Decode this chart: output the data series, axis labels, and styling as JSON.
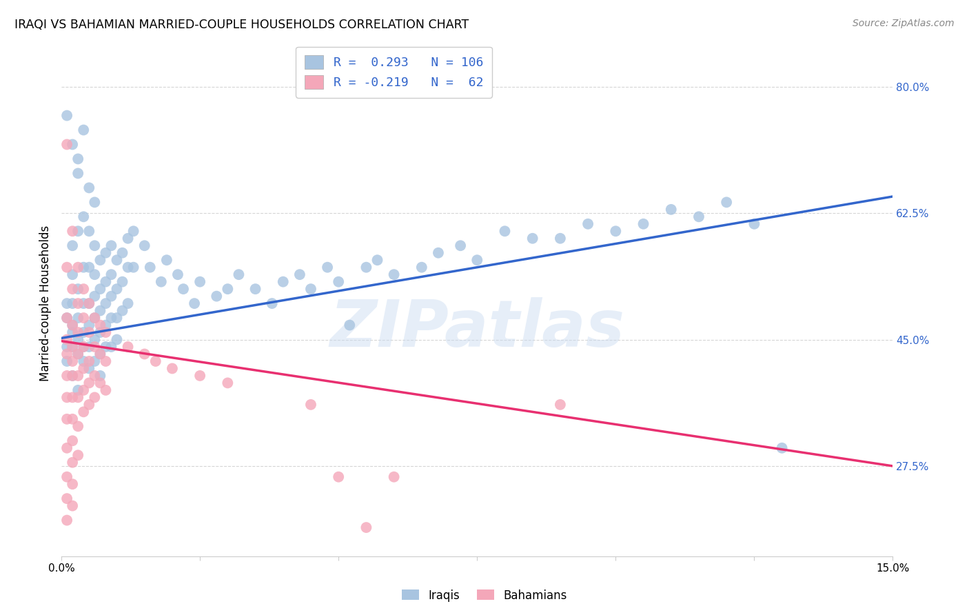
{
  "title": "IRAQI VS BAHAMIAN MARRIED-COUPLE HOUSEHOLDS CORRELATION CHART",
  "source": "Source: ZipAtlas.com",
  "ylabel": "Married-couple Households",
  "watermark": "ZIPatlas",
  "xmin": 0.0,
  "xmax": 0.15,
  "ymin": 0.15,
  "ymax": 0.85,
  "yticks": [
    0.275,
    0.45,
    0.625,
    0.8
  ],
  "ytick_labels": [
    "27.5%",
    "45.0%",
    "62.5%",
    "80.0%"
  ],
  "xticks": [
    0.0,
    0.025,
    0.05,
    0.075,
    0.1,
    0.125,
    0.15
  ],
  "xtick_labels": [
    "0.0%",
    "",
    "",
    "",
    "",
    "",
    "15.0%"
  ],
  "blue_R": 0.293,
  "blue_N": 106,
  "pink_R": -0.219,
  "pink_N": 62,
  "blue_color": "#a8c4e0",
  "pink_color": "#f4a7b9",
  "blue_line_color": "#3366cc",
  "pink_line_color": "#e83070",
  "background_color": "#ffffff",
  "grid_color": "#cccccc",
  "legend_R_color": "#3366cc",
  "blue_line_x0": 0.0,
  "blue_line_y0": 0.452,
  "blue_line_x1": 0.15,
  "blue_line_y1": 0.648,
  "pink_line_x0": 0.0,
  "pink_line_y0": 0.448,
  "pink_line_x1": 0.15,
  "pink_line_y1": 0.275,
  "blue_points": [
    [
      0.001,
      0.44
    ],
    [
      0.001,
      0.48
    ],
    [
      0.001,
      0.42
    ],
    [
      0.001,
      0.5
    ],
    [
      0.002,
      0.72
    ],
    [
      0.002,
      0.58
    ],
    [
      0.002,
      0.46
    ],
    [
      0.002,
      0.44
    ],
    [
      0.002,
      0.4
    ],
    [
      0.002,
      0.54
    ],
    [
      0.002,
      0.5
    ],
    [
      0.002,
      0.47
    ],
    [
      0.003,
      0.68
    ],
    [
      0.003,
      0.6
    ],
    [
      0.003,
      0.52
    ],
    [
      0.003,
      0.48
    ],
    [
      0.003,
      0.45
    ],
    [
      0.003,
      0.43
    ],
    [
      0.003,
      0.38
    ],
    [
      0.004,
      0.62
    ],
    [
      0.004,
      0.55
    ],
    [
      0.004,
      0.5
    ],
    [
      0.004,
      0.46
    ],
    [
      0.004,
      0.44
    ],
    [
      0.004,
      0.42
    ],
    [
      0.005,
      0.6
    ],
    [
      0.005,
      0.55
    ],
    [
      0.005,
      0.5
    ],
    [
      0.005,
      0.47
    ],
    [
      0.005,
      0.44
    ],
    [
      0.005,
      0.41
    ],
    [
      0.006,
      0.58
    ],
    [
      0.006,
      0.54
    ],
    [
      0.006,
      0.51
    ],
    [
      0.006,
      0.48
    ],
    [
      0.006,
      0.45
    ],
    [
      0.006,
      0.42
    ],
    [
      0.007,
      0.56
    ],
    [
      0.007,
      0.52
    ],
    [
      0.007,
      0.49
    ],
    [
      0.007,
      0.46
    ],
    [
      0.007,
      0.43
    ],
    [
      0.007,
      0.4
    ],
    [
      0.008,
      0.57
    ],
    [
      0.008,
      0.53
    ],
    [
      0.008,
      0.5
    ],
    [
      0.008,
      0.47
    ],
    [
      0.008,
      0.44
    ],
    [
      0.009,
      0.58
    ],
    [
      0.009,
      0.54
    ],
    [
      0.009,
      0.51
    ],
    [
      0.009,
      0.48
    ],
    [
      0.009,
      0.44
    ],
    [
      0.01,
      0.56
    ],
    [
      0.01,
      0.52
    ],
    [
      0.01,
      0.48
    ],
    [
      0.01,
      0.45
    ],
    [
      0.011,
      0.57
    ],
    [
      0.011,
      0.53
    ],
    [
      0.011,
      0.49
    ],
    [
      0.012,
      0.59
    ],
    [
      0.012,
      0.55
    ],
    [
      0.012,
      0.5
    ],
    [
      0.013,
      0.6
    ],
    [
      0.013,
      0.55
    ],
    [
      0.015,
      0.58
    ],
    [
      0.016,
      0.55
    ],
    [
      0.018,
      0.53
    ],
    [
      0.019,
      0.56
    ],
    [
      0.021,
      0.54
    ],
    [
      0.022,
      0.52
    ],
    [
      0.024,
      0.5
    ],
    [
      0.025,
      0.53
    ],
    [
      0.028,
      0.51
    ],
    [
      0.03,
      0.52
    ],
    [
      0.032,
      0.54
    ],
    [
      0.035,
      0.52
    ],
    [
      0.038,
      0.5
    ],
    [
      0.04,
      0.53
    ],
    [
      0.043,
      0.54
    ],
    [
      0.045,
      0.52
    ],
    [
      0.048,
      0.55
    ],
    [
      0.05,
      0.53
    ],
    [
      0.052,
      0.47
    ],
    [
      0.055,
      0.55
    ],
    [
      0.057,
      0.56
    ],
    [
      0.06,
      0.54
    ],
    [
      0.065,
      0.55
    ],
    [
      0.068,
      0.57
    ],
    [
      0.072,
      0.58
    ],
    [
      0.075,
      0.56
    ],
    [
      0.08,
      0.6
    ],
    [
      0.085,
      0.59
    ],
    [
      0.09,
      0.59
    ],
    [
      0.095,
      0.61
    ],
    [
      0.1,
      0.6
    ],
    [
      0.105,
      0.61
    ],
    [
      0.11,
      0.63
    ],
    [
      0.115,
      0.62
    ],
    [
      0.12,
      0.64
    ],
    [
      0.125,
      0.61
    ],
    [
      0.13,
      0.3
    ],
    [
      0.001,
      0.76
    ],
    [
      0.003,
      0.7
    ],
    [
      0.004,
      0.74
    ],
    [
      0.005,
      0.66
    ],
    [
      0.006,
      0.64
    ]
  ],
  "pink_points": [
    [
      0.001,
      0.72
    ],
    [
      0.001,
      0.55
    ],
    [
      0.001,
      0.48
    ],
    [
      0.001,
      0.45
    ],
    [
      0.001,
      0.43
    ],
    [
      0.001,
      0.4
    ],
    [
      0.001,
      0.37
    ],
    [
      0.001,
      0.34
    ],
    [
      0.001,
      0.3
    ],
    [
      0.001,
      0.26
    ],
    [
      0.001,
      0.23
    ],
    [
      0.001,
      0.2
    ],
    [
      0.002,
      0.6
    ],
    [
      0.002,
      0.52
    ],
    [
      0.002,
      0.47
    ],
    [
      0.002,
      0.44
    ],
    [
      0.002,
      0.42
    ],
    [
      0.002,
      0.4
    ],
    [
      0.002,
      0.37
    ],
    [
      0.002,
      0.34
    ],
    [
      0.002,
      0.31
    ],
    [
      0.002,
      0.28
    ],
    [
      0.002,
      0.25
    ],
    [
      0.002,
      0.22
    ],
    [
      0.003,
      0.55
    ],
    [
      0.003,
      0.5
    ],
    [
      0.003,
      0.46
    ],
    [
      0.003,
      0.43
    ],
    [
      0.003,
      0.4
    ],
    [
      0.003,
      0.37
    ],
    [
      0.003,
      0.33
    ],
    [
      0.003,
      0.29
    ],
    [
      0.004,
      0.52
    ],
    [
      0.004,
      0.48
    ],
    [
      0.004,
      0.44
    ],
    [
      0.004,
      0.41
    ],
    [
      0.004,
      0.38
    ],
    [
      0.004,
      0.35
    ],
    [
      0.005,
      0.5
    ],
    [
      0.005,
      0.46
    ],
    [
      0.005,
      0.42
    ],
    [
      0.005,
      0.39
    ],
    [
      0.005,
      0.36
    ],
    [
      0.006,
      0.48
    ],
    [
      0.006,
      0.44
    ],
    [
      0.006,
      0.4
    ],
    [
      0.006,
      0.37
    ],
    [
      0.007,
      0.47
    ],
    [
      0.007,
      0.43
    ],
    [
      0.007,
      0.39
    ],
    [
      0.008,
      0.46
    ],
    [
      0.008,
      0.42
    ],
    [
      0.008,
      0.38
    ],
    [
      0.012,
      0.44
    ],
    [
      0.015,
      0.43
    ],
    [
      0.017,
      0.42
    ],
    [
      0.02,
      0.41
    ],
    [
      0.025,
      0.4
    ],
    [
      0.03,
      0.39
    ],
    [
      0.045,
      0.36
    ],
    [
      0.05,
      0.26
    ],
    [
      0.055,
      0.19
    ],
    [
      0.06,
      0.26
    ],
    [
      0.09,
      0.36
    ]
  ]
}
